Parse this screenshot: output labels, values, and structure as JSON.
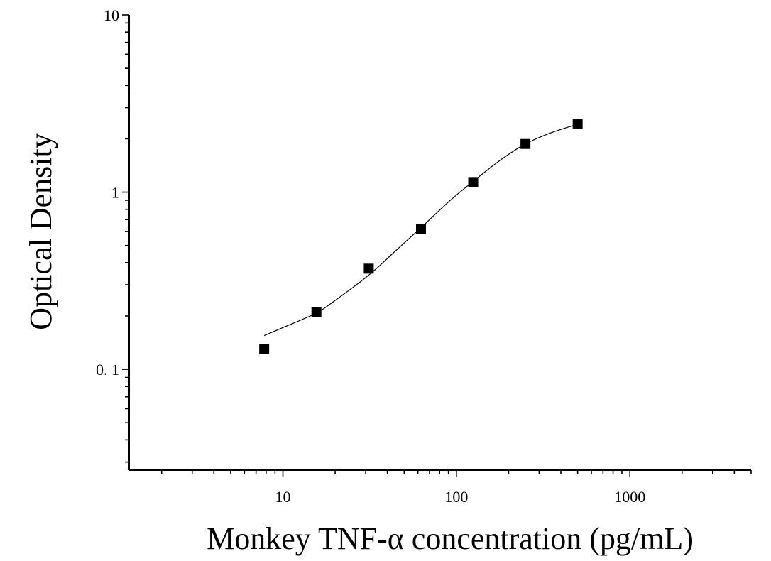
{
  "chart_data": {
    "type": "scatter",
    "xlabel": "Monkey TNF-α concentration (pg/mL)",
    "ylabel": "Optical Density",
    "x_scale": "log",
    "y_scale": "log",
    "xlim": [
      1.3,
      5000
    ],
    "ylim": [
      0.027,
      10
    ],
    "x_ticks": [
      {
        "value": 10,
        "label": "10"
      },
      {
        "value": 100,
        "label": "100"
      },
      {
        "value": 1000,
        "label": "1000"
      }
    ],
    "y_ticks": [
      {
        "value": 0.1,
        "label": "0. 1"
      },
      {
        "value": 1,
        "label": "1"
      },
      {
        "value": 10,
        "label": "10"
      }
    ],
    "grid": false,
    "legend": "none",
    "marker": "square",
    "marker_color": "#000000",
    "line_color": "#000000",
    "series": [
      {
        "x": [
          7.8,
          15.6,
          31.25,
          62.5,
          125,
          250,
          500
        ],
        "y": [
          0.13,
          0.21,
          0.37,
          0.62,
          1.14,
          1.87,
          2.42
        ]
      }
    ],
    "fit_curve": {
      "x": [
        7.8,
        10,
        15.6,
        20,
        31.25,
        45,
        62.5,
        90,
        125,
        180,
        250,
        350,
        500
      ],
      "y": [
        0.155,
        0.172,
        0.208,
        0.245,
        0.34,
        0.47,
        0.63,
        0.88,
        1.15,
        1.52,
        1.87,
        2.16,
        2.42
      ]
    }
  }
}
